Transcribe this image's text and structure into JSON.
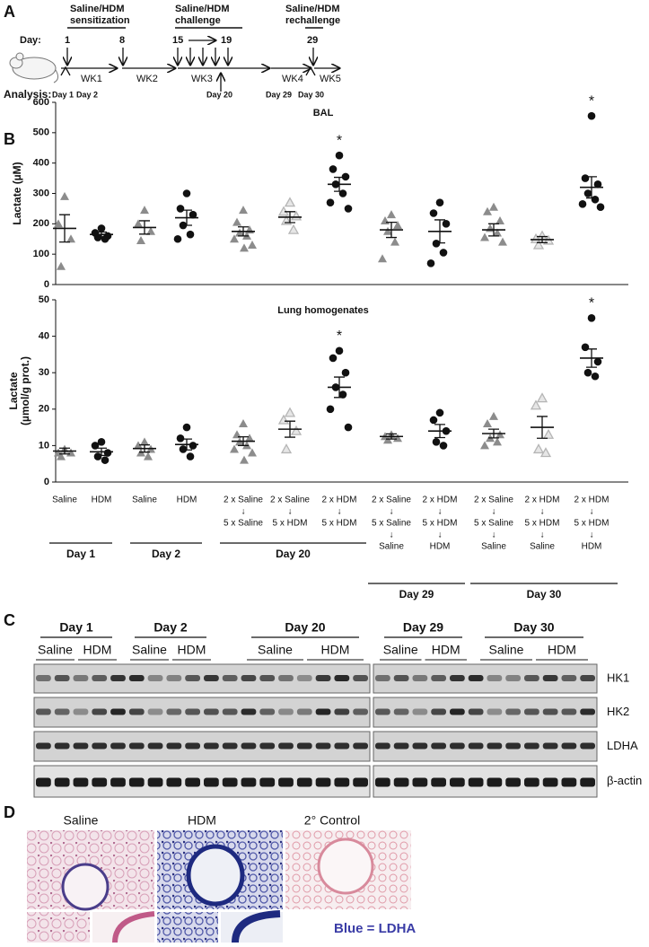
{
  "panel_labels": [
    "A",
    "B",
    "C",
    "D"
  ],
  "timeline": {
    "day_label": "Day:",
    "days": [
      "1",
      "8",
      "15",
      "19",
      "29"
    ],
    "phases": [
      [
        "Saline/HDM",
        "sensitization"
      ],
      [
        "Saline/HDM",
        "challenge"
      ],
      [
        "Saline/HDM",
        "rechallenge"
      ]
    ],
    "weeks": [
      "WK1",
      "WK2",
      "WK3",
      "WK4",
      "WK5"
    ],
    "analysis_label": "Analysis:",
    "analysis_days": [
      "Day 1",
      "Day 2",
      "Day 20",
      "Day 29",
      "Day 30"
    ]
  },
  "chart_data": [
    {
      "type": "scatter",
      "title": "BAL",
      "ylabel": [
        "Lactate (µM)"
      ],
      "ylim": [
        0,
        600
      ],
      "yticks": [
        0,
        100,
        200,
        300,
        400,
        500,
        600
      ],
      "markers": [
        "triangle",
        "circle",
        "triangle",
        "circle",
        "triangle",
        "open-triangle",
        "circle",
        "triangle",
        "circle",
        "triangle",
        "open-triangle",
        "circle"
      ],
      "marker_colors": {
        "triangle": "#8c8c8c",
        "circle": "#111111",
        "open-triangle": "#b5b5b5"
      },
      "points": [
        [
          290,
          200,
          150,
          60
        ],
        [
          185,
          170,
          160,
          155,
          150
        ],
        [
          245,
          200,
          175,
          145
        ],
        [
          300,
          250,
          230,
          195,
          165,
          150
        ],
        [
          245,
          205,
          180,
          170,
          160,
          150,
          130,
          120
        ],
        [
          270,
          240,
          225,
          210,
          180
        ],
        [
          425,
          380,
          355,
          330,
          300,
          270,
          250
        ],
        [
          230,
          210,
          195,
          175,
          140,
          85
        ],
        [
          270,
          235,
          200,
          135,
          105,
          70
        ],
        [
          255,
          240,
          210,
          185,
          170,
          155,
          140
        ],
        [
          160,
          150,
          145,
          130
        ],
        [
          555,
          350,
          330,
          300,
          280,
          265,
          255
        ]
      ],
      "values": [
        185,
        165,
        188,
        220,
        175,
        222,
        330,
        180,
        175,
        180,
        148,
        320
      ],
      "errors": [
        45,
        8,
        22,
        25,
        15,
        18,
        23,
        25,
        38,
        20,
        10,
        35
      ],
      "annotations": [
        {
          "index": 6,
          "text": "*"
        },
        {
          "index": 11,
          "text": "*"
        }
      ]
    },
    {
      "type": "scatter",
      "title": "Lung homogenates",
      "ylabel": [
        "Lactate",
        "(µmol/g prot.)"
      ],
      "ylim": [
        0,
        50
      ],
      "yticks": [
        0,
        10,
        20,
        30,
        40,
        50
      ],
      "markers": [
        "triangle",
        "circle",
        "triangle",
        "circle",
        "triangle",
        "open-triangle",
        "circle",
        "triangle",
        "circle",
        "triangle",
        "open-triangle",
        "circle"
      ],
      "marker_colors": {
        "triangle": "#8c8c8c",
        "circle": "#111111",
        "open-triangle": "#b5b5b5"
      },
      "points": [
        [
          9,
          8,
          8,
          7
        ],
        [
          11,
          10,
          8,
          7,
          6
        ],
        [
          11,
          10,
          9,
          8,
          7
        ],
        [
          15,
          12,
          10,
          9,
          7
        ],
        [
          16,
          13,
          12,
          11,
          10,
          9,
          8,
          6
        ],
        [
          19,
          17,
          14,
          9
        ],
        [
          36,
          34,
          30,
          26,
          24,
          20,
          15
        ],
        [
          13,
          12.5,
          12,
          11.5
        ],
        [
          19,
          17,
          14,
          11,
          10
        ],
        [
          18,
          16,
          13,
          12,
          11,
          10
        ],
        [
          23,
          21,
          13,
          9,
          8
        ],
        [
          45,
          37,
          33,
          30,
          29
        ]
      ],
      "values": [
        8.5,
        8.3,
        9.2,
        10.3,
        11.2,
        14.5,
        26,
        12.5,
        14,
        13.3,
        15,
        34
      ],
      "errors": [
        0.8,
        1,
        1,
        1.5,
        1.2,
        2.2,
        2.8,
        0.7,
        1.8,
        1.2,
        3,
        2.5
      ],
      "annotations": [
        {
          "index": 6,
          "text": "*"
        },
        {
          "index": 11,
          "text": "*"
        }
      ],
      "categories": [
        [
          "Saline"
        ],
        [
          "HDM"
        ],
        [
          "Saline"
        ],
        [
          "HDM"
        ],
        [
          "2 x Saline",
          "↓",
          "5 x Saline"
        ],
        [
          "2 x Saline",
          "↓",
          "5 x HDM"
        ],
        [
          "2 x HDM",
          "↓",
          "5 x HDM"
        ],
        [
          "2 x Saline",
          "↓",
          "5 x Saline",
          "↓",
          "Saline"
        ],
        [
          "2 x HDM",
          "↓",
          "5 x HDM",
          "↓",
          "HDM"
        ],
        [
          "2 x Saline",
          "↓",
          "5 x Saline",
          "↓",
          "Saline"
        ],
        [
          "2 x HDM",
          "↓",
          "5 x HDM",
          "↓",
          "Saline"
        ],
        [
          "2 x HDM",
          "↓",
          "5 x HDM",
          "↓",
          "HDM"
        ]
      ],
      "groups": [
        "Day 1",
        "Day 2",
        "Day 20",
        "Day 29",
        "Day 30"
      ]
    }
  ],
  "blot": {
    "days": [
      "Day 1",
      "Day 2",
      "Day 20",
      "Day 29",
      "Day 30"
    ],
    "conditions": [
      "Saline",
      "HDM"
    ],
    "proteins": [
      "HK1",
      "HK2",
      "LDHA",
      "β-actin"
    ]
  },
  "histology": {
    "titles": [
      "Saline",
      "HDM",
      "2° Control"
    ],
    "legend": "Blue = LDHA"
  }
}
